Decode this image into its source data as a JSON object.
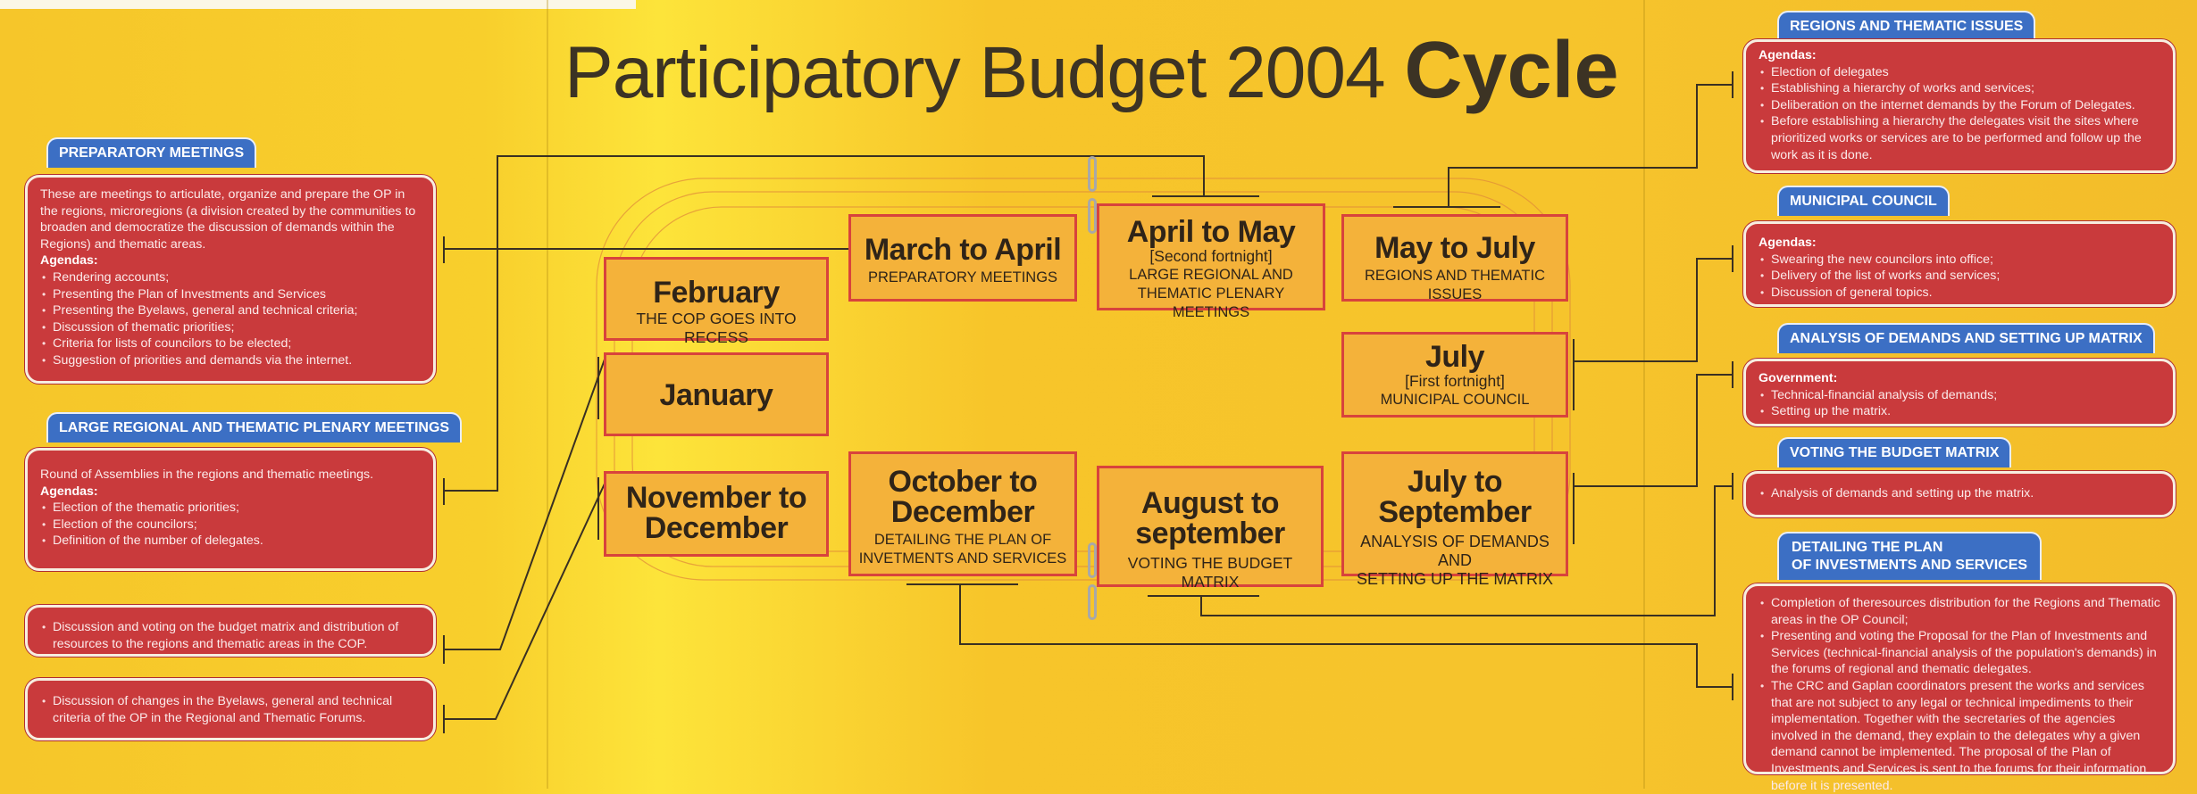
{
  "title": {
    "main": "Participatory Budget 2004",
    "emphasis": "Cycle"
  },
  "left_panels": {
    "preparatory": {
      "tab": "PREPARATORY MEETINGS",
      "intro": "These are meetings to articulate, organize and prepare the OP in the regions, microregions (a division created by the communities to broaden and democratize the discussion of demands within the Regions) and thematic areas.",
      "agendas_label": "Agendas:",
      "items": [
        "Rendering accounts;",
        "Presenting the Plan of Investments and Services",
        "Presenting the Byelaws, general and technical criteria;",
        "Discussion of thematic priorities;",
        "Criteria for lists of councilors to be elected;",
        "Suggestion of priorities and demands via the internet."
      ]
    },
    "large_regional": {
      "tab": "LARGE REGIONAL AND THEMATIC PLENARY MEETINGS",
      "intro": "Round of Assemblies in the regions and thematic meetings.",
      "agendas_label": "Agendas:",
      "items": [
        "Election of the thematic priorities;",
        "Election of the councilors;",
        "Definition of the number of delegates."
      ]
    },
    "budget_matrix_vote": {
      "items": [
        "Discussion and voting on the budget matrix and distribution of resources to the regions and thematic areas in the COP."
      ]
    },
    "byelaws": {
      "items": [
        "Discussion of changes in the Byelaws, general and technical criteria of the OP in the Regional and Thematic Forums."
      ]
    }
  },
  "right_panels": {
    "regions": {
      "tab": "REGIONS AND THEMATIC ISSUES",
      "agendas_label": "Agendas:",
      "items": [
        "Election of delegates",
        "Establishing a hierarchy of works and services;",
        "Deliberation on the internet demands by the Forum of Delegates.",
        "Before establishing a hierarchy the delegates visit the sites where prioritized works or services are to be performed and follow up the work as it is done."
      ]
    },
    "municipal": {
      "tab": "MUNICIPAL COUNCIL",
      "agendas_label": "Agendas:",
      "items": [
        "Swearing the new councilors into office;",
        "Delivery of the list of works and services;",
        "Discussion of general topics."
      ]
    },
    "analysis": {
      "tab": "ANALYSIS OF DEMANDS AND SETTING UP MATRIX",
      "agendas_label": "Government:",
      "items": [
        "Technical-financial analysis of demands;",
        "Setting up the matrix."
      ]
    },
    "voting": {
      "tab": "VOTING THE BUDGET MATRIX",
      "items": [
        "Analysis of demands and setting up the matrix."
      ]
    },
    "detailing": {
      "tab_line1": "DETAILING THE PLAN",
      "tab_line2": "OF INVESTMENTS AND SERVICES",
      "items": [
        "Completion of theresources distribution for the Regions and Thematic areas in the OP Council;",
        "Presenting and voting the Proposal for the Plan of Investments and Services (technical-financial analysis of the population's demands) in the forums of regional and thematic delegates.",
        "The CRC and Gaplan coordinators present the works and services that are not subject to any legal or technical impediments to their implementation. Together with the secretaries of the agencies involved in the demand, they explain to the delegates why a given demand cannot be implemented. The proposal of the Plan of Investments and Services is sent to the forums for their information before it is presented."
      ]
    }
  },
  "cycle": {
    "february": {
      "month": "February",
      "desc": "THE COP GOES INTO RECESS"
    },
    "january": {
      "month": "January"
    },
    "nov_dec": {
      "month1": "November to",
      "month2": "December"
    },
    "mar_apr": {
      "month": "March to April",
      "desc": "PREPARATORY MEETINGS"
    },
    "apr_may": {
      "month": "April to May",
      "sub": "[Second fortnight]",
      "desc1": "LARGE REGIONAL AND",
      "desc2": "THEMATIC PLENARY MEETINGS"
    },
    "may_jul": {
      "month": "May to July",
      "desc": "REGIONS AND THEMATIC ISSUES"
    },
    "july": {
      "month": "July",
      "sub": "[First fortnight]",
      "desc": "MUNICIPAL COUNCIL"
    },
    "jul_sep": {
      "month1": "July to",
      "month2": "September",
      "desc1": "ANALYSIS OF DEMANDS AND",
      "desc2": "SETTING UP THE MATRIX"
    },
    "aug_sep": {
      "month1": "August to",
      "month2": "september",
      "desc": "VOTING THE BUDGET MATRIX"
    },
    "oct_dec": {
      "month1": "October to",
      "month2": "December",
      "desc1": "DETAILING THE PLAN OF",
      "desc2": "INVETMENTS AND SERVICES"
    }
  },
  "colors": {
    "background": "#f6c62a",
    "card": "#c93a3c",
    "tab": "#3c6fc4",
    "box": "#f4b23a",
    "box_border": "#d8433c"
  }
}
